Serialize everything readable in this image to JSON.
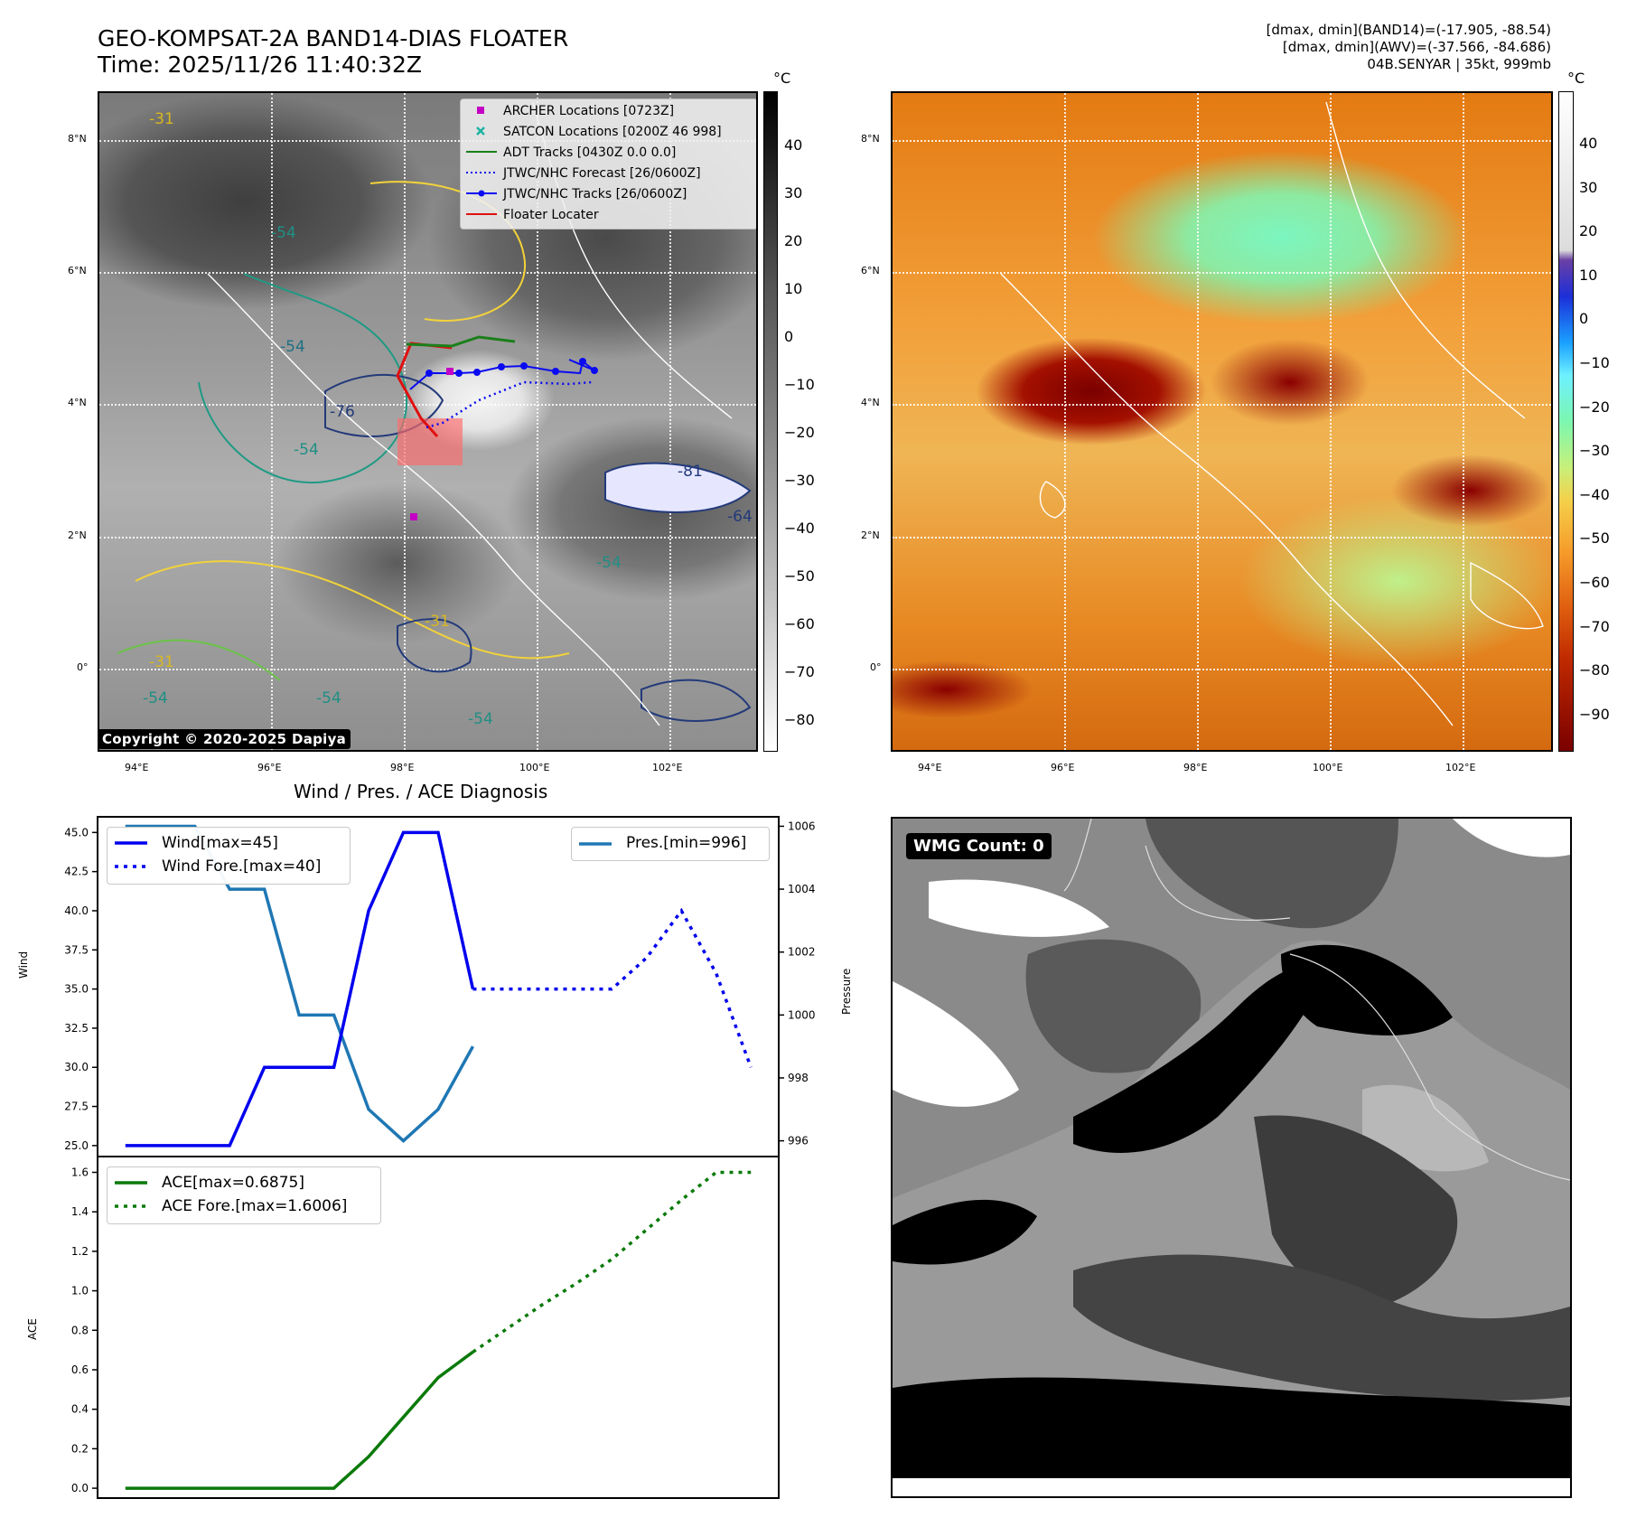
{
  "header": {
    "title_line1": "GEO-KOMPSAT-2A BAND14-DIAS FLOATER",
    "title_line2": "Time: 2025/11/26 11:40:32Z",
    "stat_line1": "[dmax, dmin](BAND14)=(-17.905, -88.54)",
    "stat_line2": "[dmax, dmin](AWV)=(-37.566, -84.686)",
    "stat_line3": "04B.SENYAR | 35kt, 999mb"
  },
  "maps": {
    "lon_labels": [
      "94°E",
      "96°E",
      "98°E",
      "100°E",
      "102°E"
    ],
    "lat_labels": [
      "8°N",
      "6°N",
      "4°N",
      "2°N",
      "0°"
    ],
    "copyright": "Copyright © 2020-2025 Dapiya",
    "contour_labels": [
      "-54",
      "-76",
      "-54",
      "-81",
      "-64",
      "-54",
      "-31",
      "-54",
      "-31",
      "-54",
      "-54",
      "-54",
      "-31"
    ]
  },
  "colorbar_ir": {
    "unit": "°C",
    "ticks": [
      "40",
      "30",
      "20",
      "10",
      "0",
      "−10",
      "−20",
      "−30",
      "−40",
      "−50",
      "−60",
      "−70",
      "−80"
    ]
  },
  "colorbar_awv": {
    "unit": "°C",
    "ticks": [
      "40",
      "30",
      "20",
      "10",
      "0",
      "−10",
      "−20",
      "−30",
      "−40",
      "−50",
      "−60",
      "−70",
      "−80",
      "−90"
    ]
  },
  "legend": {
    "items": [
      {
        "label": "ARCHER Locations [0723Z]",
        "color": "#c400c4",
        "kind": "square"
      },
      {
        "label": "SATCON Locations [0200Z 46 998]",
        "color": "#1bb3a2",
        "kind": "x"
      },
      {
        "label": "ADT Tracks [0430Z 0.0 0.0]",
        "color": "#1a7f1a",
        "kind": "line"
      },
      {
        "label": "JTWC/NHC Forecast [26/0600Z]",
        "color": "#0a0af0",
        "kind": "dotted"
      },
      {
        "label": "JTWC/NHC Tracks [26/0600Z]",
        "color": "#0a0af0",
        "kind": "line-dot"
      },
      {
        "label": "Floater Locater",
        "color": "#e01010",
        "kind": "line"
      }
    ]
  },
  "diagnosis": {
    "title": "Wind / Pres. / ACE Diagnosis",
    "wind_ylabel": "Wind",
    "pres_ylabel": "Pressure",
    "ace_ylabel": "ACE",
    "wind_legend": "Wind[max=45]",
    "wind_fore_legend": "Wind Fore.[max=40]",
    "pres_legend": "Pres.[min=996]",
    "ace_legend": "ACE[max=0.6875]",
    "ace_fore_legend": "ACE Fore.[max=1.6006]"
  },
  "wmg": {
    "badge": "WMG Count: 0"
  },
  "colors": {
    "wind": "#0000ee",
    "pressure": "#1f77b4",
    "ace": "#0a7a0a"
  },
  "chart_data": [
    {
      "type": "line",
      "title": "Wind / Pres. / ACE Diagnosis",
      "ylabel": "Wind",
      "ylim": [
        24.3,
        46.0
      ],
      "yticks": [
        25.0,
        27.5,
        30.0,
        32.5,
        35.0,
        37.5,
        40.0,
        42.5,
        45.0
      ],
      "series": [
        {
          "name": "Wind[max=45]",
          "x": [
            0,
            1,
            2,
            3,
            4,
            5,
            6,
            7,
            8,
            9,
            10
          ],
          "values": [
            25,
            25,
            25,
            25,
            30,
            30,
            30,
            40,
            45,
            45,
            35
          ]
        },
        {
          "name": "Wind Fore.[max=40]",
          "x": [
            10,
            11,
            12,
            13,
            14,
            15,
            16,
            17,
            18
          ],
          "values": [
            35,
            35,
            35,
            35,
            35,
            37,
            40,
            36,
            30
          ]
        }
      ]
    },
    {
      "type": "line",
      "ylabel": "Pressure",
      "ylim": [
        995.5,
        1006.3
      ],
      "yticks": [
        996,
        998,
        1000,
        1002,
        1004,
        1006
      ],
      "series": [
        {
          "name": "Pres.[min=996]",
          "x": [
            0,
            1,
            2,
            3,
            4,
            5,
            6,
            7,
            8,
            9,
            10
          ],
          "values": [
            1006,
            1006,
            1006,
            1004,
            1004,
            1000,
            1000,
            997,
            996,
            997,
            999
          ]
        }
      ]
    },
    {
      "type": "line",
      "ylabel": "ACE",
      "ylim": [
        -0.05,
        1.68
      ],
      "yticks": [
        0.0,
        0.2,
        0.4,
        0.6,
        0.8,
        1.0,
        1.2,
        1.4,
        1.6
      ],
      "series": [
        {
          "name": "ACE[max=0.6875]",
          "x": [
            0,
            1,
            2,
            3,
            4,
            5,
            6,
            7,
            8,
            9,
            10
          ],
          "values": [
            0,
            0,
            0,
            0,
            0,
            0,
            0,
            0.16,
            0.36,
            0.56,
            0.69
          ]
        },
        {
          "name": "ACE Fore.[max=1.6006]",
          "x": [
            10,
            11,
            12,
            13,
            14,
            15,
            16,
            17,
            18
          ],
          "values": [
            0.69,
            0.81,
            0.93,
            1.04,
            1.16,
            1.31,
            1.46,
            1.6,
            1.6
          ]
        }
      ]
    }
  ]
}
